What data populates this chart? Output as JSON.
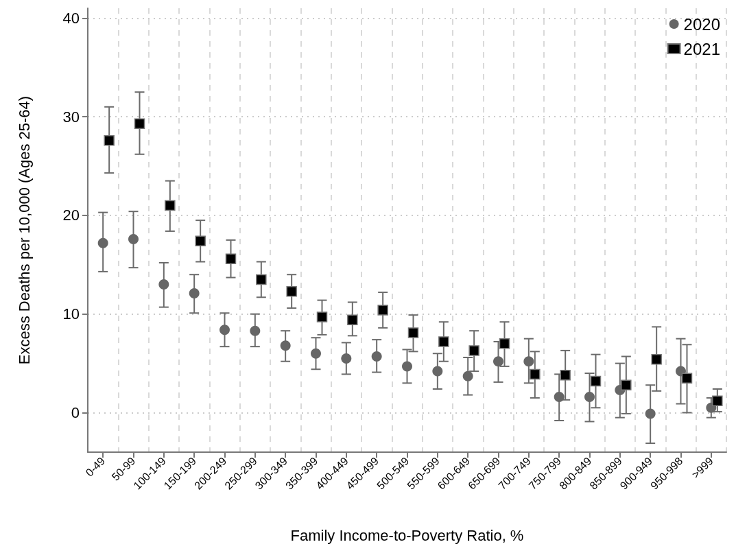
{
  "chart_data": {
    "type": "scatter",
    "xlabel": "Family Income-to-Poverty Ratio, %",
    "ylabel": "Excess Deaths per 10,000 (Ages 25-64)",
    "categories": [
      "0-49",
      "50-99",
      "100-149",
      "150-199",
      "200-249",
      "250-299",
      "300-349",
      "350-399",
      "400-449",
      "450-499",
      "500-549",
      "550-599",
      "600-649",
      "650-699",
      "700-749",
      "750-799",
      "800-849",
      "850-899",
      "900-949",
      "950-998",
      ">999"
    ],
    "series": [
      {
        "name": "2020",
        "color": "#666666",
        "marker": "circle",
        "values": [
          17.2,
          17.6,
          13.0,
          12.1,
          8.4,
          8.3,
          6.8,
          6.0,
          5.5,
          5.7,
          4.7,
          4.2,
          3.7,
          5.2,
          5.2,
          1.6,
          1.6,
          2.3,
          -0.1,
          4.2,
          0.5
        ],
        "errors": [
          [
            14.3,
            20.3
          ],
          [
            14.7,
            20.4
          ],
          [
            10.7,
            15.2
          ],
          [
            10.1,
            14.0
          ],
          [
            6.7,
            10.1
          ],
          [
            6.7,
            10.0
          ],
          [
            5.2,
            8.3
          ],
          [
            4.4,
            7.6
          ],
          [
            3.9,
            7.1
          ],
          [
            4.1,
            7.4
          ],
          [
            3.0,
            6.4
          ],
          [
            2.4,
            6.0
          ],
          [
            1.8,
            5.6
          ],
          [
            3.1,
            7.2
          ],
          [
            3.0,
            7.5
          ],
          [
            -0.8,
            3.9
          ],
          [
            -0.9,
            4.0
          ],
          [
            -0.5,
            5.0
          ],
          [
            -3.1,
            2.8
          ],
          [
            0.9,
            7.5
          ],
          [
            -0.5,
            1.5
          ]
        ]
      },
      {
        "name": "2021",
        "color": "#000000",
        "marker": "square",
        "values": [
          27.6,
          29.3,
          21.0,
          17.4,
          15.6,
          13.5,
          12.3,
          9.7,
          9.4,
          10.4,
          8.1,
          7.2,
          6.3,
          7.0,
          3.9,
          3.8,
          3.2,
          2.8,
          5.4,
          3.5,
          1.2
        ],
        "errors": [
          [
            24.3,
            31.0
          ],
          [
            26.2,
            32.5
          ],
          [
            18.4,
            23.5
          ],
          [
            15.3,
            19.5
          ],
          [
            13.7,
            17.5
          ],
          [
            11.7,
            15.3
          ],
          [
            10.6,
            14.0
          ],
          [
            7.9,
            11.4
          ],
          [
            7.8,
            11.2
          ],
          [
            8.6,
            12.2
          ],
          [
            6.2,
            9.9
          ],
          [
            5.2,
            9.2
          ],
          [
            4.2,
            8.3
          ],
          [
            4.7,
            9.2
          ],
          [
            1.5,
            6.2
          ],
          [
            1.3,
            6.3
          ],
          [
            0.5,
            5.9
          ],
          [
            -0.1,
            5.7
          ],
          [
            2.2,
            8.7
          ],
          [
            0.0,
            6.9
          ],
          [
            0.1,
            2.4
          ]
        ]
      }
    ],
    "ylim": [
      -4,
      41
    ],
    "yticks": [
      0,
      10,
      20,
      30,
      40
    ],
    "grid": true,
    "legend": "top right"
  }
}
